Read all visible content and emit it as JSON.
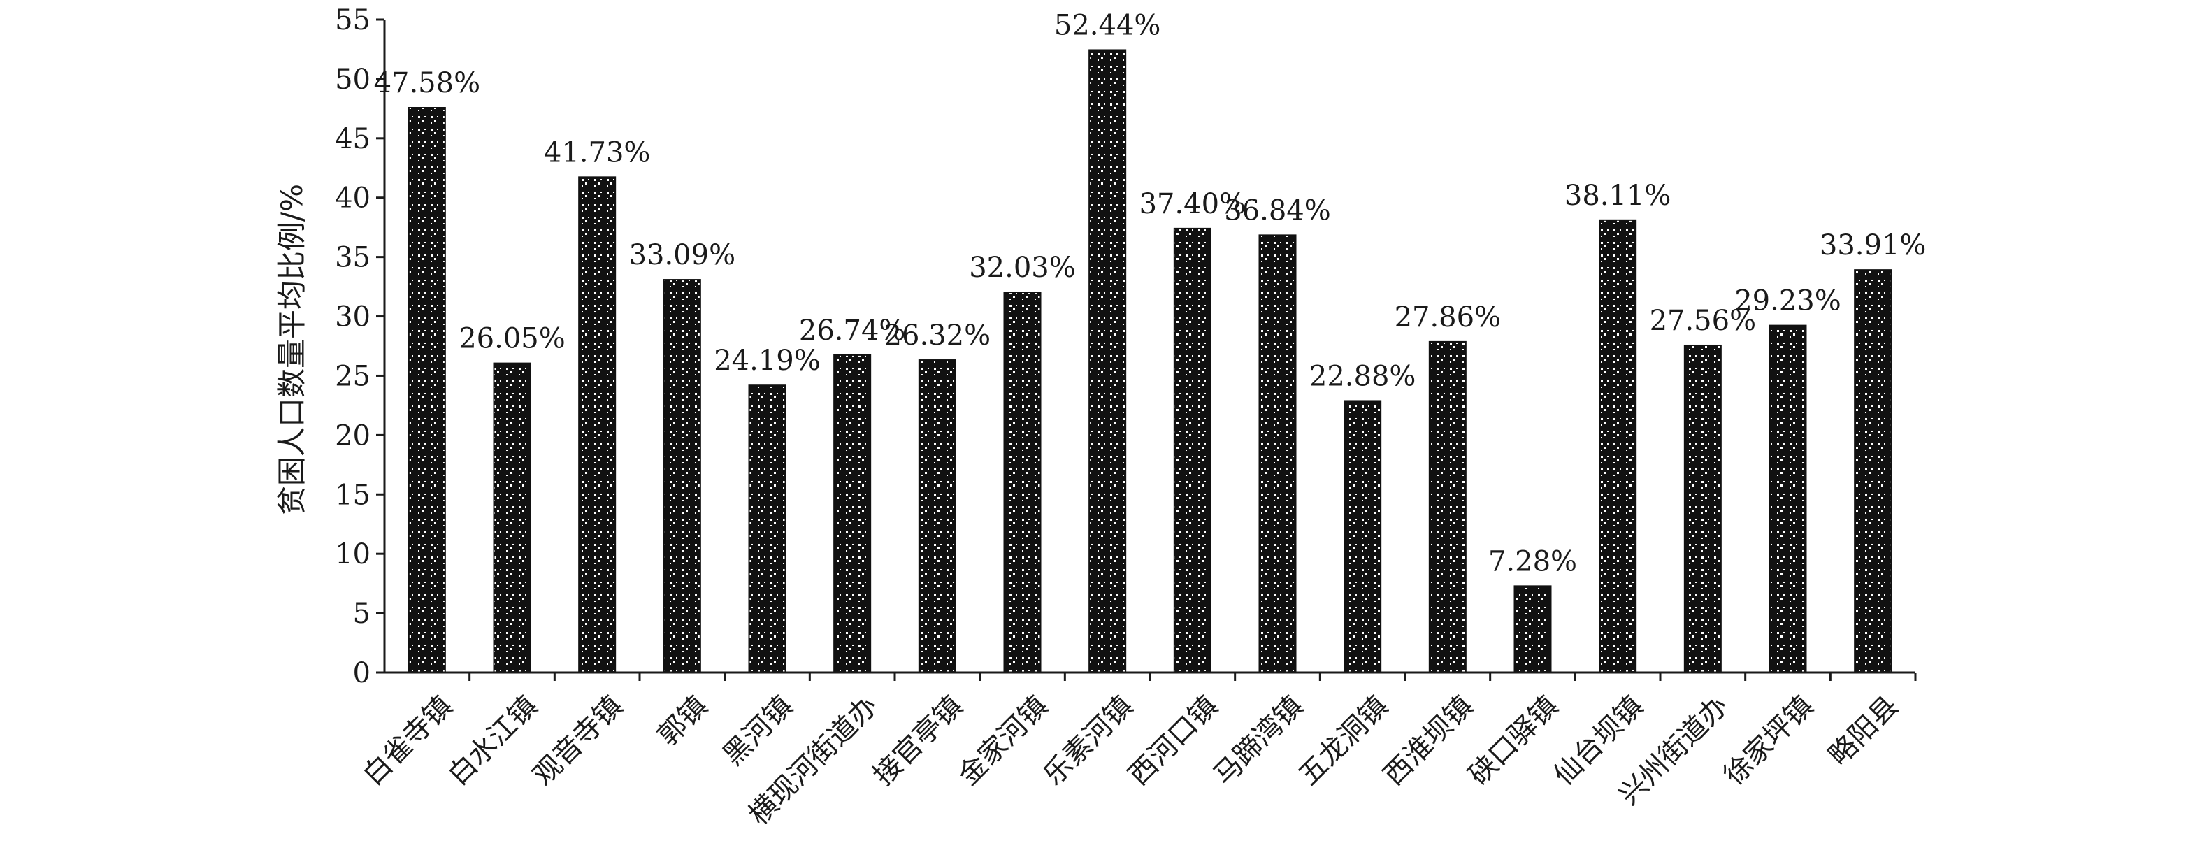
{
  "chart_data": {
    "type": "bar",
    "ylabel": "贫困人口数量平均比例/%",
    "ylim": [
      0,
      55
    ],
    "yticks": [
      0,
      5,
      10,
      15,
      20,
      25,
      30,
      35,
      40,
      45,
      50,
      55
    ],
    "grid": false,
    "legend": "none",
    "categories": [
      "白雀寺镇",
      "白水江镇",
      "观音寺镇",
      "郭镇",
      "黑河镇",
      "横现河街道办",
      "接官亭镇",
      "金家河镇",
      "乐素河镇",
      "西河口镇",
      "马蹄湾镇",
      "五龙洞镇",
      "西淮坝镇",
      "硖口驿镇",
      "仙台坝镇",
      "兴州街道办",
      "徐家坪镇",
      "略阳县"
    ],
    "values": [
      47.58,
      26.05,
      41.73,
      33.09,
      24.19,
      26.74,
      26.32,
      32.03,
      52.44,
      37.4,
      36.84,
      22.88,
      27.86,
      7.28,
      38.11,
      27.56,
      29.23,
      33.91
    ],
    "data_labels": [
      "47.58%",
      "26.05%",
      "41.73%",
      "33.09%",
      "24.19%",
      "26.74%",
      "26.32%",
      "32.03%",
      "52.44%",
      "37.40%",
      "36.84%",
      "22.88%",
      "27.86%",
      "7.28%",
      "38.11%",
      "27.56%",
      "29.23%",
      "33.91%"
    ],
    "bar_color": "#111111",
    "pattern_color": "#ffffff",
    "axis_color": "#1a1a1a"
  }
}
